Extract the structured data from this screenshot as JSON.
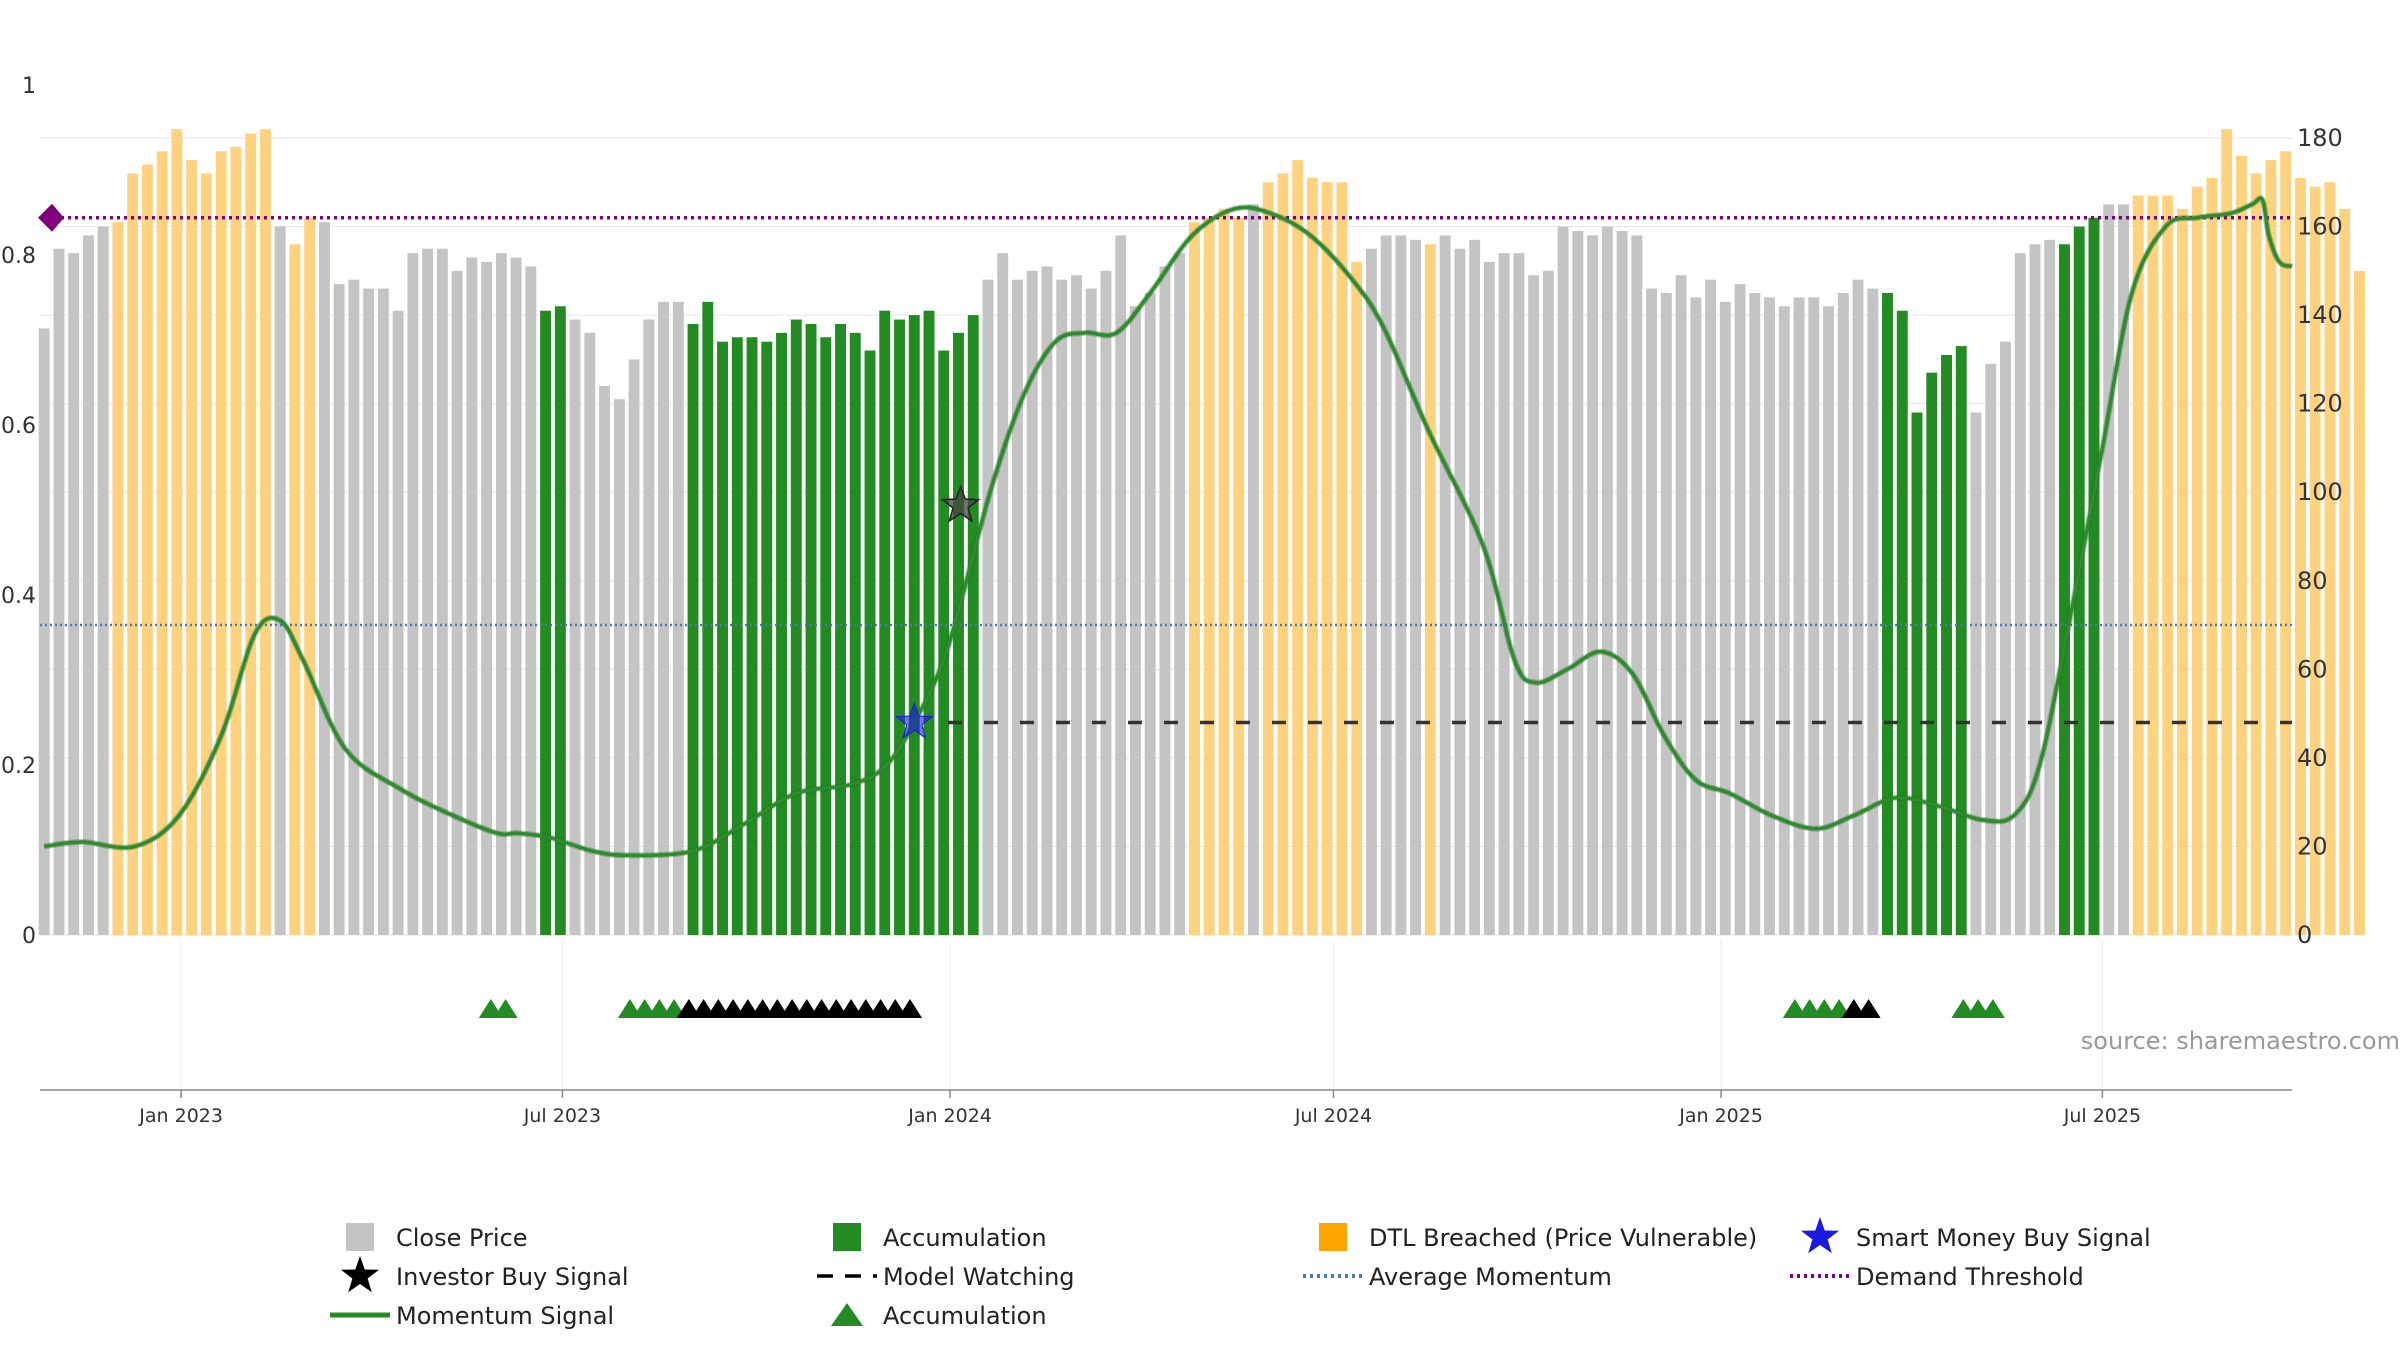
{
  "chart_data": {
    "type": "bar",
    "colors": {
      "close_price": "#c4c4c4",
      "accumulation": "#228b22",
      "dtl_breached": "#ffd27f",
      "momentum": "#2e8b2e",
      "avg_momentum": "#4a7bb0",
      "demand_threshold": "#800080",
      "model_watching": "#333333",
      "investor_star": "#444444",
      "smart_money_star": "#1a1ae0"
    },
    "left_axis": {
      "ticks": [
        "0",
        "0.2",
        "0.4",
        "0.6",
        "0.8",
        "1"
      ],
      "ylim": [
        0,
        1
      ]
    },
    "right_axis": {
      "ticks": [
        "0",
        "20",
        "40",
        "60",
        "80",
        "100",
        "120",
        "140",
        "160",
        "180"
      ],
      "ylim": [
        0,
        190
      ]
    },
    "x_axis": {
      "ticks": [
        "Jan 2023",
        "Jul 2023",
        "Jan 2024",
        "Jul 2024",
        "Jan 2025",
        "Jul 2025"
      ],
      "tick_dates": [
        "2023-01-01",
        "2023-07-01",
        "2024-01-01",
        "2024-07-01",
        "2025-01-01",
        "2025-07-01"
      ],
      "range": [
        "2022-10-26",
        "2025-09-29"
      ]
    },
    "bars": {
      "start_date": "2022-10-28",
      "step_days": 7,
      "values": [
        137,
        155,
        154,
        158,
        160,
        161,
        172,
        174,
        177,
        182,
        175,
        172,
        177,
        178,
        181,
        182,
        160,
        156,
        162,
        161,
        147,
        148,
        146,
        146,
        141,
        154,
        155,
        155,
        150,
        153,
        152,
        154,
        153,
        151,
        141,
        142,
        139,
        136,
        124,
        121,
        130,
        139,
        143,
        143,
        138,
        143,
        134,
        135,
        135,
        134,
        136,
        139,
        138,
        135,
        138,
        136,
        132,
        141,
        139,
        140,
        141,
        132,
        136,
        140,
        148,
        154,
        148,
        150,
        151,
        148,
        149,
        146,
        150,
        158,
        142,
        145,
        151,
        154,
        161,
        162,
        164,
        162,
        165,
        170,
        172,
        175,
        171,
        170,
        170,
        152,
        155,
        158,
        158,
        157,
        156,
        158,
        155,
        157,
        152,
        154,
        154,
        149,
        150,
        160,
        159,
        158,
        160,
        159,
        158,
        146,
        145,
        149,
        144,
        148,
        143,
        147,
        145,
        144,
        142,
        144,
        144,
        142,
        145,
        148,
        146,
        145,
        141,
        118,
        127,
        131,
        133,
        118,
        129,
        134,
        154,
        156,
        157,
        156,
        160,
        162,
        165,
        165,
        167,
        167,
        167,
        164,
        169,
        171,
        182,
        176,
        172,
        175,
        177,
        171,
        169,
        170,
        164,
        150
      ],
      "states": [
        "c",
        "c",
        "c",
        "c",
        "c",
        "d",
        "d",
        "d",
        "d",
        "d",
        "d",
        "d",
        "d",
        "d",
        "d",
        "d",
        "c",
        "d",
        "d",
        "c",
        "c",
        "c",
        "c",
        "c",
        "c",
        "c",
        "c",
        "c",
        "c",
        "c",
        "c",
        "c",
        "c",
        "c",
        "a",
        "a",
        "c",
        "c",
        "c",
        "c",
        "c",
        "c",
        "c",
        "c",
        "a",
        "a",
        "a",
        "a",
        "a",
        "a",
        "a",
        "a",
        "a",
        "a",
        "a",
        "a",
        "a",
        "a",
        "a",
        "a",
        "a",
        "a",
        "a",
        "a",
        "c",
        "c",
        "c",
        "c",
        "c",
        "c",
        "c",
        "c",
        "c",
        "c",
        "c",
        "c",
        "c",
        "c",
        "d",
        "d",
        "d",
        "d",
        "c",
        "d",
        "d",
        "d",
        "d",
        "d",
        "d",
        "d",
        "c",
        "c",
        "c",
        "c",
        "d",
        "c",
        "c",
        "c",
        "c",
        "c",
        "c",
        "c",
        "c",
        "c",
        "c",
        "c",
        "c",
        "c",
        "c",
        "c",
        "c",
        "c",
        "c",
        "c",
        "c",
        "c",
        "c",
        "c",
        "c",
        "c",
        "c",
        "c",
        "c",
        "c",
        "c",
        "a",
        "a",
        "a",
        "a",
        "a",
        "a",
        "c",
        "c",
        "c",
        "c",
        "c",
        "c",
        "a",
        "a",
        "a",
        "c",
        "c",
        "d",
        "d",
        "d",
        "d",
        "d",
        "d",
        "d",
        "d",
        "d",
        "d",
        "d",
        "d",
        "d",
        "d",
        "d",
        "d",
        "d",
        "d",
        "c"
      ]
    },
    "momentum": {
      "points": [
        [
          "2022-10-28",
          20
        ],
        [
          "2022-11-15",
          21
        ],
        [
          "2022-12-10",
          20
        ],
        [
          "2022-12-31",
          27
        ],
        [
          "2023-01-20",
          45
        ],
        [
          "2023-02-05",
          68
        ],
        [
          "2023-02-17",
          71
        ],
        [
          "2023-02-28",
          62
        ],
        [
          "2023-03-20",
          42
        ],
        [
          "2023-04-15",
          33
        ],
        [
          "2023-05-10",
          27
        ],
        [
          "2023-05-31",
          23
        ],
        [
          "2023-06-10",
          23
        ],
        [
          "2023-06-25",
          22
        ],
        [
          "2023-07-15",
          19
        ],
        [
          "2023-08-01",
          18
        ],
        [
          "2023-09-01",
          19
        ],
        [
          "2023-09-25",
          25
        ],
        [
          "2023-10-20",
          32
        ],
        [
          "2023-11-15",
          34
        ],
        [
          "2023-12-01",
          38
        ],
        [
          "2023-12-15",
          48
        ],
        [
          "2023-12-31",
          65
        ],
        [
          "2024-01-20",
          100
        ],
        [
          "2024-02-05",
          122
        ],
        [
          "2024-02-20",
          134
        ],
        [
          "2024-03-05",
          136
        ],
        [
          "2024-03-20",
          136
        ],
        [
          "2024-04-05",
          145
        ],
        [
          "2024-04-25",
          158
        ],
        [
          "2024-05-15",
          164
        ],
        [
          "2024-06-01",
          163
        ],
        [
          "2024-06-20",
          158
        ],
        [
          "2024-07-10",
          148
        ],
        [
          "2024-07-25",
          137
        ],
        [
          "2024-08-15",
          114
        ],
        [
          "2024-09-10",
          88
        ],
        [
          "2024-09-25",
          62
        ],
        [
          "2024-10-05",
          57
        ],
        [
          "2024-10-20",
          60
        ],
        [
          "2024-11-05",
          64
        ],
        [
          "2024-11-20",
          59
        ],
        [
          "2024-12-05",
          45
        ],
        [
          "2024-12-20",
          35
        ],
        [
          "2025-01-05",
          32
        ],
        [
          "2025-01-25",
          27
        ],
        [
          "2025-02-15",
          24
        ],
        [
          "2025-03-05",
          27
        ],
        [
          "2025-03-25",
          31
        ],
        [
          "2025-04-15",
          29
        ],
        [
          "2025-05-05",
          26
        ],
        [
          "2025-05-20",
          27
        ],
        [
          "2025-06-01",
          38
        ],
        [
          "2025-06-15",
          70
        ],
        [
          "2025-07-01",
          110
        ],
        [
          "2025-07-15",
          145
        ],
        [
          "2025-07-31",
          160
        ],
        [
          "2025-08-15",
          162
        ],
        [
          "2025-08-31",
          163
        ],
        [
          "2025-09-10",
          165
        ],
        [
          "2025-09-15",
          166
        ],
        [
          "2025-09-18",
          158
        ],
        [
          "2025-09-23",
          152
        ],
        [
          "2025-09-29",
          151
        ]
      ]
    },
    "average_momentum": {
      "value": 70
    },
    "demand_threshold": {
      "value": 162
    },
    "model_watching": {
      "value": 48,
      "start_date": "2023-12-31",
      "end_date": "2025-09-29"
    },
    "investor_buy_signal": {
      "date": "2024-01-06",
      "value": 97
    },
    "smart_money_buy_signal": {
      "date": "2023-12-15",
      "value": 48
    },
    "signal_triangles": {
      "green_dates": [
        "2023-05-28",
        "2023-06-04",
        "2023-08-02",
        "2023-08-09",
        "2023-08-16",
        "2023-08-23",
        "2025-02-05",
        "2025-02-12",
        "2025-02-19",
        "2025-02-26",
        "2025-04-26",
        "2025-05-03",
        "2025-05-10"
      ],
      "black_dates": [
        "2023-08-30",
        "2023-09-06",
        "2023-09-13",
        "2023-09-20",
        "2023-09-27",
        "2023-10-04",
        "2023-10-11",
        "2023-10-18",
        "2023-10-25",
        "2023-11-01",
        "2023-11-08",
        "2023-11-15",
        "2023-11-22",
        "2023-11-29",
        "2023-12-06",
        "2023-12-13",
        "2025-03-05",
        "2025-03-12"
      ]
    },
    "source_text": "source: sharemaestro.com",
    "legend": [
      {
        "label": "Close Price",
        "symbol": "square",
        "color": "#c4c4c4"
      },
      {
        "label": "Accumulation",
        "symbol": "square",
        "color": "#228b22"
      },
      {
        "label": "DTL Breached (Price Vulnerable)",
        "symbol": "square",
        "color": "#ffa500"
      },
      {
        "label": "Smart Money Buy Signal",
        "symbol": "star",
        "color": "#1a1ae0"
      },
      {
        "label": "Investor Buy Signal",
        "symbol": "star",
        "color": "#000000"
      },
      {
        "label": "Model Watching",
        "symbol": "dash",
        "color": "#000000"
      },
      {
        "label": "Average Momentum",
        "symbol": "dotted",
        "color": "#4a7bb0"
      },
      {
        "label": "Demand Threshold",
        "symbol": "dotted",
        "color": "#800080"
      },
      {
        "label": "Momentum Signal",
        "symbol": "line",
        "color": "#228b22"
      },
      {
        "label": "Accumulation",
        "symbol": "triangle",
        "color": "#228b22"
      }
    ]
  }
}
